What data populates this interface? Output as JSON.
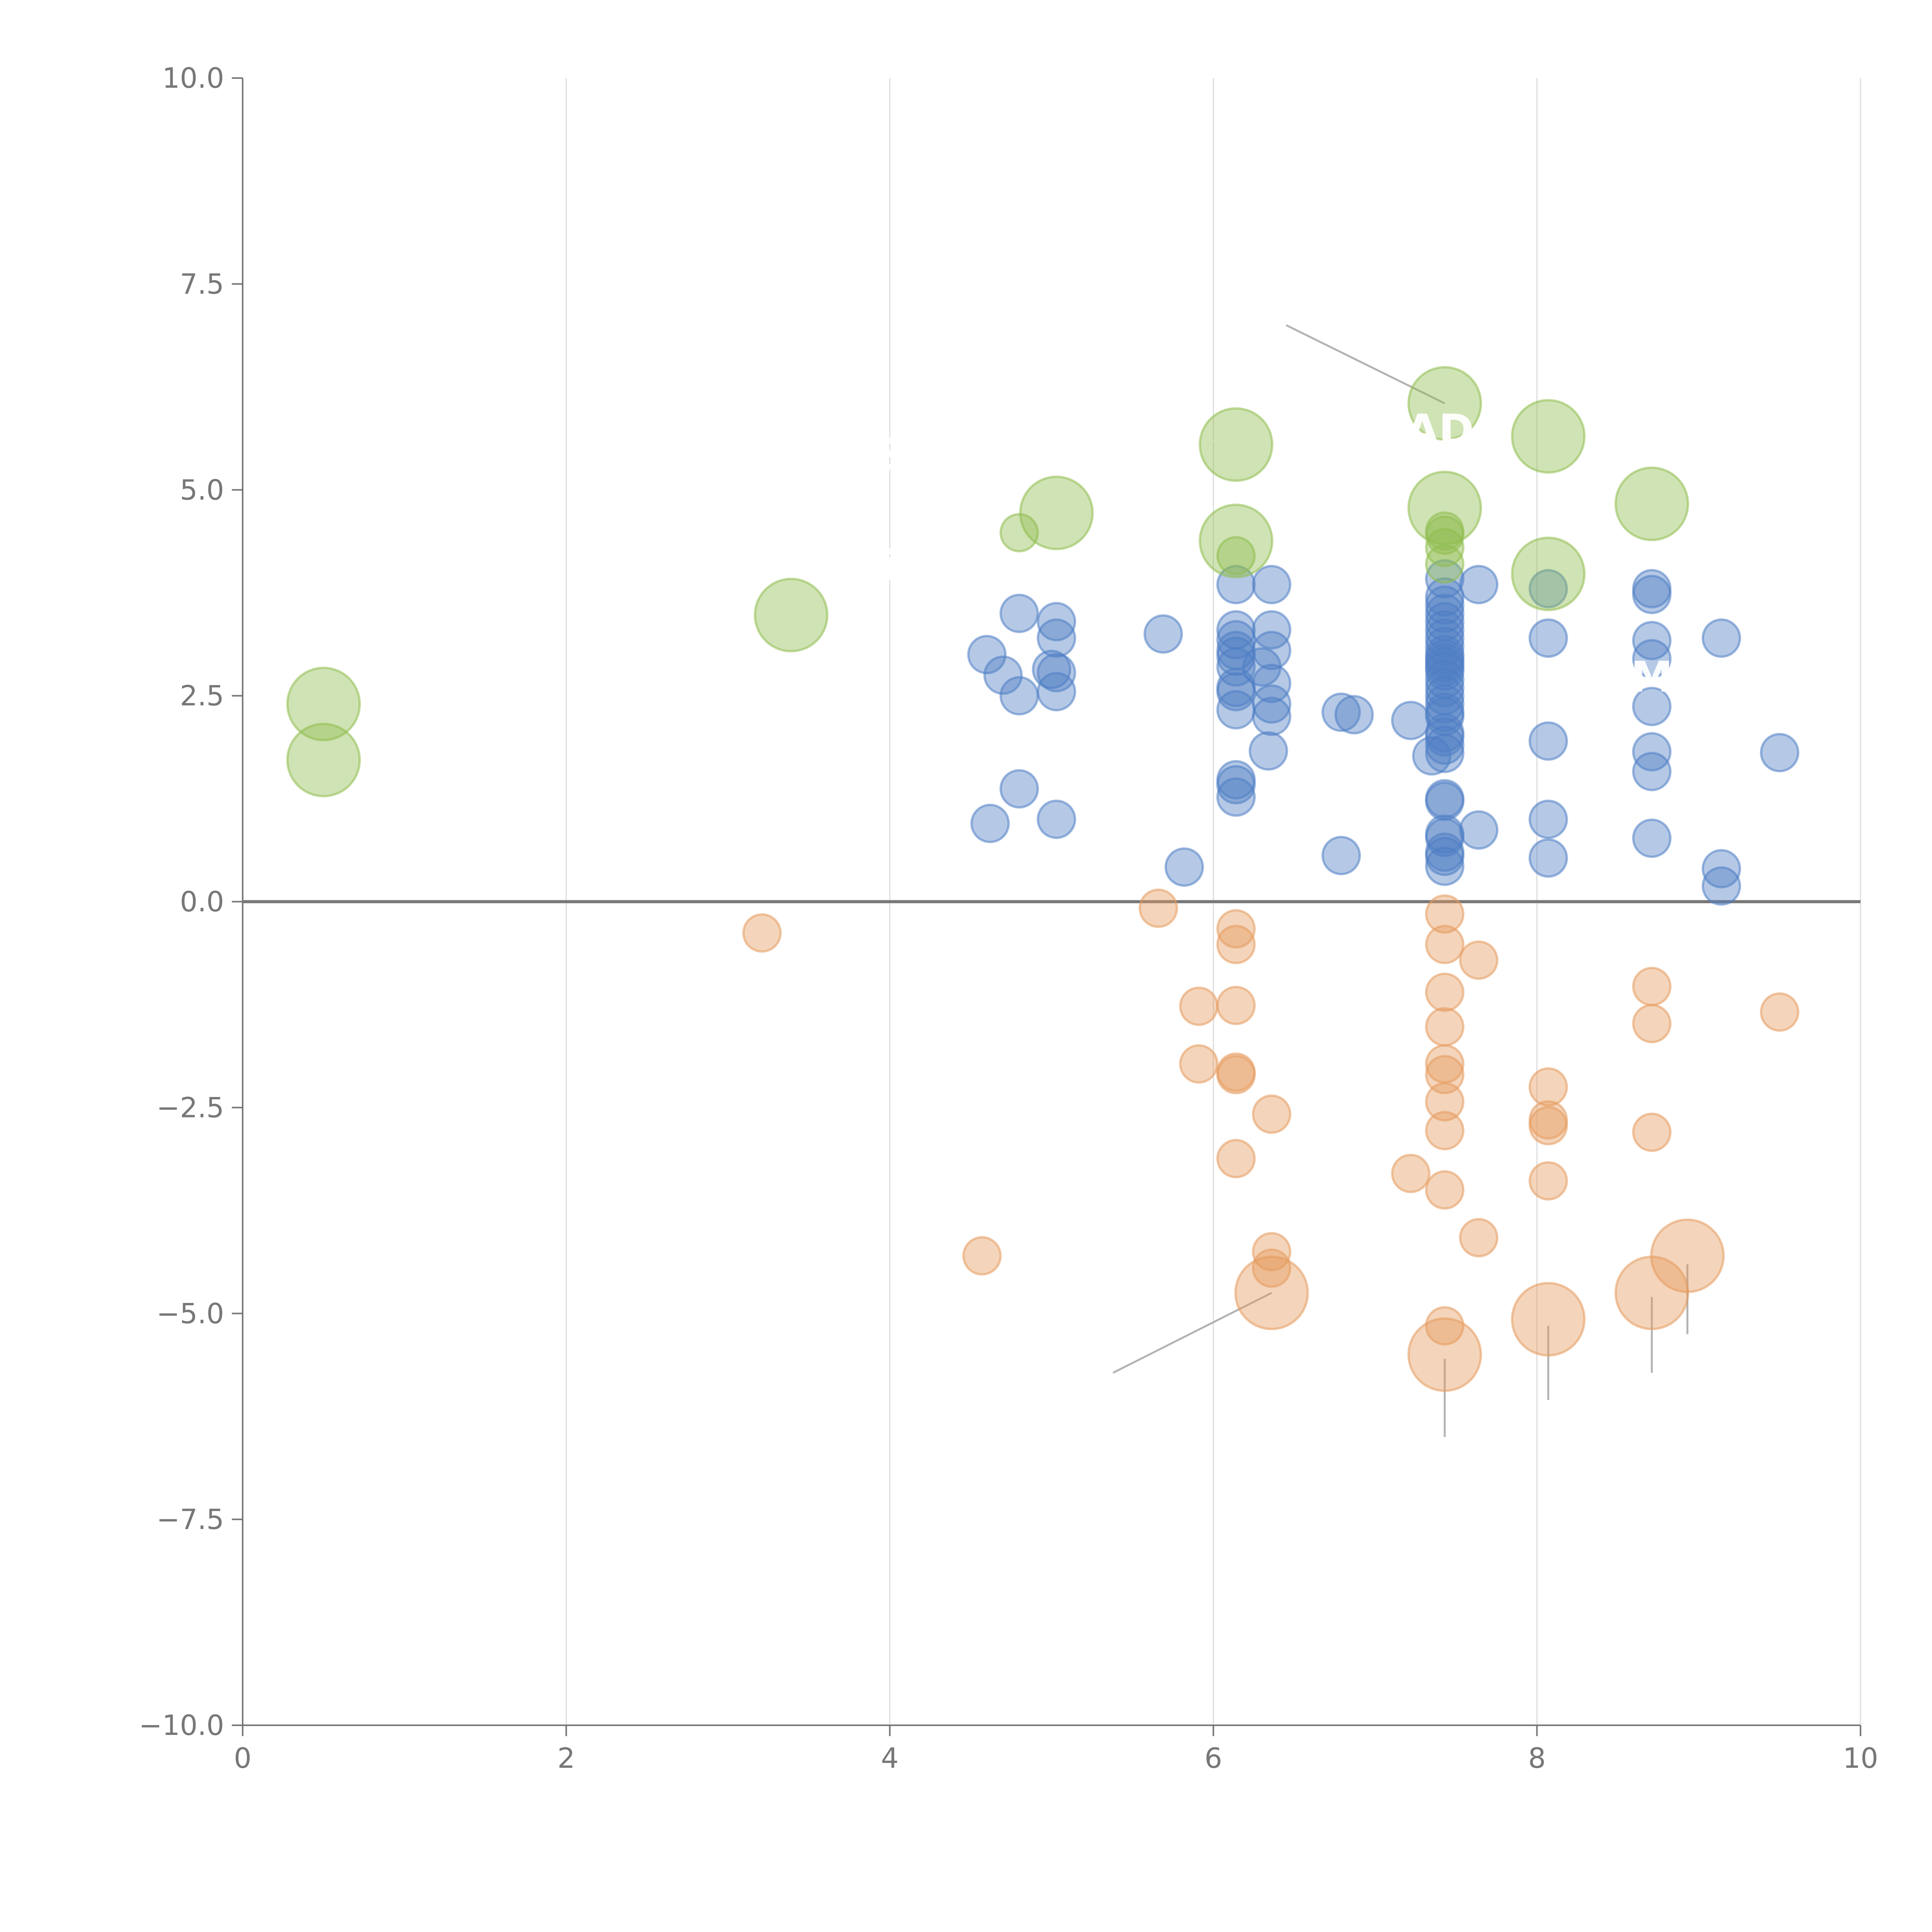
{
  "chart_data": {
    "type": "scatter",
    "title": "",
    "xlabel": "",
    "ylabel": "",
    "xlim": [
      0,
      10
    ],
    "ylim": [
      -10,
      10
    ],
    "x_ticks": [
      "0",
      "2",
      "4",
      "6",
      "8",
      "10"
    ],
    "x_tick_values": [
      0,
      2,
      4,
      6,
      8,
      10
    ],
    "y_ticks": [
      "10.0",
      "7.5",
      "5.0",
      "2.5",
      "0.0",
      "−2.5",
      "−5.0",
      "−7.5",
      "−10.0"
    ],
    "y_tick_values": [
      10,
      7.5,
      5,
      2.5,
      0,
      -2.5,
      -5,
      -7.5,
      -10
    ],
    "x_grid": true,
    "y_grid": false,
    "reference_line_y": 0,
    "colors": {
      "positive": "#4e7ec4",
      "negative": "#e59a5e",
      "highlight": "#8fbd4e",
      "axis": "#777777",
      "grid": "#dddddd",
      "leader": "#aaaaaa",
      "leader_light": "#ffffff",
      "label": "#ffffff"
    },
    "series": [
      {
        "name": "positive",
        "size": 1,
        "points": [
          [
            4.6,
            3.0
          ],
          [
            4.7,
            2.75
          ],
          [
            4.8,
            3.5
          ],
          [
            4.8,
            2.5
          ],
          [
            4.8,
            1.37
          ],
          [
            4.62,
            0.95
          ],
          [
            5.03,
            3.4
          ],
          [
            5.03,
            3.2
          ],
          [
            5.0,
            2.82
          ],
          [
            5.03,
            2.78
          ],
          [
            5.03,
            2.55
          ],
          [
            5.03,
            1.0
          ],
          [
            5.69,
            3.25
          ],
          [
            5.82,
            0.42
          ],
          [
            6.14,
            3.85
          ],
          [
            6.14,
            3.3
          ],
          [
            6.14,
            3.18
          ],
          [
            6.14,
            3.05
          ],
          [
            6.14,
            2.98
          ],
          [
            6.14,
            2.85
          ],
          [
            6.14,
            2.6
          ],
          [
            6.14,
            2.55
          ],
          [
            6.14,
            2.33
          ],
          [
            6.14,
            1.48
          ],
          [
            6.14,
            1.42
          ],
          [
            6.14,
            1.27
          ],
          [
            6.36,
            3.85
          ],
          [
            6.36,
            3.3
          ],
          [
            6.36,
            3.05
          ],
          [
            6.3,
            2.85
          ],
          [
            6.36,
            2.65
          ],
          [
            6.36,
            2.4
          ],
          [
            6.36,
            2.25
          ],
          [
            6.34,
            1.83
          ],
          [
            6.79,
            2.3
          ],
          [
            6.87,
            2.27
          ],
          [
            6.79,
            0.56
          ],
          [
            7.22,
            2.2
          ],
          [
            7.35,
            1.77
          ],
          [
            7.43,
            3.92
          ],
          [
            7.43,
            3.7
          ],
          [
            7.43,
            3.6
          ],
          [
            7.43,
            3.5
          ],
          [
            7.43,
            3.4
          ],
          [
            7.43,
            3.3
          ],
          [
            7.43,
            3.2
          ],
          [
            7.43,
            3.1
          ],
          [
            7.43,
            3.0
          ],
          [
            7.43,
            2.95
          ],
          [
            7.43,
            2.9
          ],
          [
            7.43,
            2.85
          ],
          [
            7.43,
            2.8
          ],
          [
            7.43,
            2.7
          ],
          [
            7.43,
            2.6
          ],
          [
            7.43,
            2.5
          ],
          [
            7.43,
            2.4
          ],
          [
            7.43,
            2.3
          ],
          [
            7.43,
            2.25
          ],
          [
            7.43,
            2.05
          ],
          [
            7.43,
            2.0
          ],
          [
            7.43,
            1.9
          ],
          [
            7.43,
            1.8
          ],
          [
            7.43,
            1.25
          ],
          [
            7.43,
            1.22
          ],
          [
            7.43,
            0.82
          ],
          [
            7.43,
            0.78
          ],
          [
            7.43,
            0.6
          ],
          [
            7.43,
            0.55
          ],
          [
            7.43,
            0.43
          ],
          [
            7.64,
            3.85
          ],
          [
            7.64,
            0.87
          ],
          [
            8.07,
            3.8
          ],
          [
            8.07,
            3.2
          ],
          [
            8.07,
            1.95
          ],
          [
            8.07,
            1.0
          ],
          [
            8.07,
            0.53
          ],
          [
            8.71,
            3.8
          ],
          [
            8.71,
            3.73
          ],
          [
            8.71,
            3.17
          ],
          [
            8.71,
            2.95
          ],
          [
            8.71,
            2.37
          ],
          [
            8.71,
            1.82
          ],
          [
            8.71,
            1.58
          ],
          [
            8.71,
            0.77
          ],
          [
            9.14,
            3.2
          ],
          [
            9.14,
            0.4
          ],
          [
            9.14,
            0.19
          ],
          [
            9.5,
            1.81
          ]
        ]
      },
      {
        "name": "negative",
        "size": 1,
        "points": [
          [
            3.21,
            -0.38
          ],
          [
            4.57,
            -4.3
          ],
          [
            5.66,
            -0.08
          ],
          [
            5.91,
            -1.27
          ],
          [
            5.91,
            -1.97
          ],
          [
            6.14,
            -0.33
          ],
          [
            6.14,
            -0.52
          ],
          [
            6.14,
            -1.26
          ],
          [
            6.14,
            -2.07
          ],
          [
            6.14,
            -2.1
          ],
          [
            6.14,
            -3.12
          ],
          [
            6.36,
            -2.58
          ],
          [
            6.36,
            -4.25
          ],
          [
            6.36,
            -4.45
          ],
          [
            7.22,
            -3.3
          ],
          [
            7.43,
            -0.15
          ],
          [
            7.43,
            -0.52
          ],
          [
            7.43,
            -1.1
          ],
          [
            7.43,
            -1.52
          ],
          [
            7.43,
            -1.97
          ],
          [
            7.43,
            -2.1
          ],
          [
            7.43,
            -2.43
          ],
          [
            7.43,
            -2.78
          ],
          [
            7.43,
            -3.5
          ],
          [
            7.43,
            -5.15
          ],
          [
            7.64,
            -0.71
          ],
          [
            7.64,
            -4.08
          ],
          [
            8.07,
            -2.25
          ],
          [
            8.07,
            -2.65
          ],
          [
            8.07,
            -2.72
          ],
          [
            8.07,
            -3.39
          ],
          [
            8.71,
            -1.03
          ],
          [
            8.71,
            -1.48
          ],
          [
            8.71,
            -2.8
          ],
          [
            9.5,
            -1.34
          ]
        ]
      },
      {
        "name": "highlight_positive",
        "size": 1,
        "points": [
          [
            4.8,
            4.48
          ],
          [
            6.14,
            4.2
          ],
          [
            7.43,
            4.5
          ],
          [
            7.43,
            4.45
          ],
          [
            7.43,
            4.3
          ],
          [
            7.43,
            4.1
          ]
        ]
      },
      {
        "name": "big_positive",
        "size": 2,
        "points": [
          [
            0.5,
            2.4
          ],
          [
            0.5,
            1.72
          ],
          [
            3.39,
            3.48
          ],
          [
            5.03,
            4.72
          ],
          [
            6.14,
            5.55
          ],
          [
            6.14,
            4.38
          ],
          [
            7.43,
            6.05
          ],
          [
            7.43,
            4.78
          ],
          [
            8.07,
            5.65
          ],
          [
            8.07,
            3.98
          ],
          [
            8.71,
            4.83
          ]
        ]
      },
      {
        "name": "big_negative",
        "size": 2,
        "points": [
          [
            6.36,
            -4.75
          ],
          [
            7.43,
            -5.5
          ],
          [
            8.07,
            -5.07
          ],
          [
            8.71,
            -4.75
          ],
          [
            8.93,
            -4.3
          ]
        ]
      }
    ],
    "leader_lines": [
      {
        "tone": "dark",
        "from": [
          7.43,
          6.05
        ],
        "to": [
          6.45,
          7.0
        ]
      },
      {
        "tone": "dark",
        "from": [
          6.36,
          -4.75
        ],
        "to": [
          5.38,
          -5.72
        ]
      },
      {
        "tone": "dark",
        "from": [
          7.43,
          -5.55
        ],
        "to": [
          7.43,
          -6.5
        ]
      },
      {
        "tone": "dark",
        "from": [
          8.07,
          -5.15
        ],
        "to": [
          8.07,
          -6.05
        ]
      },
      {
        "tone": "dark",
        "from": [
          8.71,
          -4.8
        ],
        "to": [
          8.71,
          -5.72
        ]
      },
      {
        "tone": "dark",
        "from": [
          8.93,
          -4.4
        ],
        "to": [
          8.93,
          -5.25
        ]
      },
      {
        "tone": "light",
        "from": [
          0.55,
          1.72
        ],
        "to": [
          0.72,
          1.75
        ]
      },
      {
        "tone": "light",
        "from": [
          3.42,
          3.48
        ],
        "to": [
          3.62,
          3.52
        ]
      },
      {
        "tone": "light",
        "from": [
          5.0,
          4.72
        ],
        "to": [
          4.75,
          4.78
        ]
      },
      {
        "tone": "light",
        "from": [
          6.1,
          5.55
        ],
        "to": [
          5.95,
          5.62
        ]
      },
      {
        "tone": "light",
        "from": [
          6.15,
          4.38
        ],
        "to": [
          6.3,
          4.32
        ]
      },
      {
        "tone": "light",
        "from": [
          7.43,
          4.78
        ],
        "to": [
          7.35,
          4.98
        ]
      },
      {
        "tone": "light",
        "from": [
          8.1,
          5.65
        ],
        "to": [
          8.3,
          5.75
        ]
      },
      {
        "tone": "light",
        "from": [
          8.1,
          3.98
        ],
        "to": [
          8.22,
          3.85
        ]
      },
      {
        "tone": "light",
        "from": [
          8.71,
          3.25
        ],
        "to": [
          8.9,
          3.0
        ]
      }
    ],
    "labels": [
      {
        "text": "AD",
        "x": 7.4,
        "y": 5.55
      },
      {
        "text": "M",
        "x": 8.71,
        "y": 2.55
      },
      {
        "text": "S",
        "x": 4.0,
        "y": 5.25
      },
      {
        "text": "i",
        "x": 4.0,
        "y": 3.9
      }
    ]
  }
}
